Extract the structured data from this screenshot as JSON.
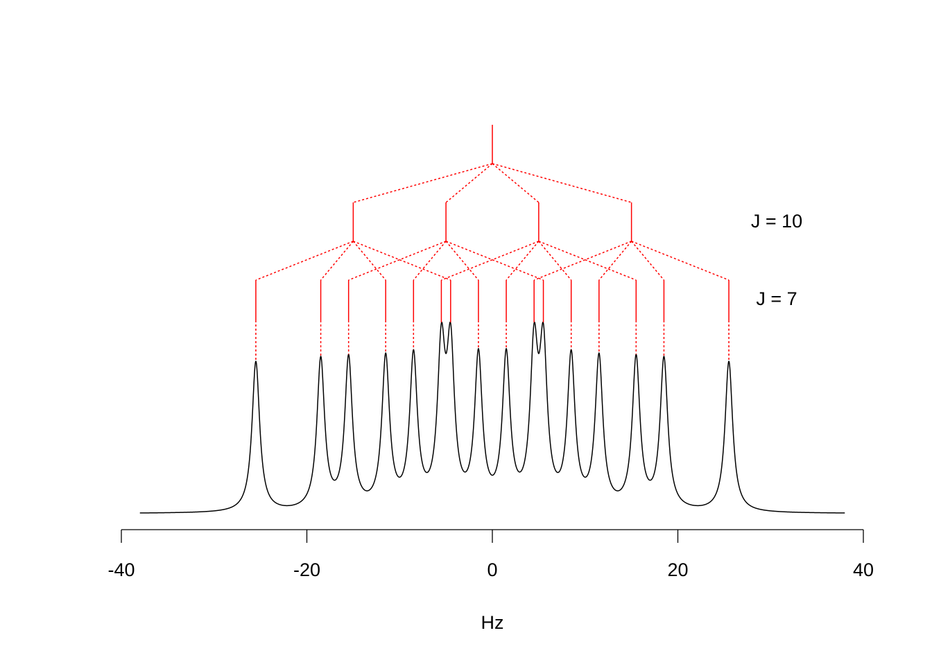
{
  "chart_data": {
    "type": "splitting-tree",
    "xlabel": "Hz",
    "xlim": [
      -40,
      40
    ],
    "xticks": [
      -40,
      -20,
      0,
      20,
      40
    ],
    "spectrum_xrange": [
      -38,
      38
    ],
    "linewidth": 1,
    "tree_color": "#ff0000",
    "line_color": "#000000",
    "levels": [
      {
        "positions": [
          0
        ]
      },
      {
        "positions": [
          -15,
          -5,
          5,
          15
        ],
        "label": "J = 10"
      },
      {
        "positions": [
          -25.5,
          -18.5,
          -11.5,
          -4.5,
          -15.5,
          -8.5,
          -1.5,
          5.5,
          -5.5,
          1.5,
          8.5,
          15.5,
          4.5,
          11.5,
          18.5,
          25.5
        ],
        "label": "J = 7"
      }
    ]
  }
}
